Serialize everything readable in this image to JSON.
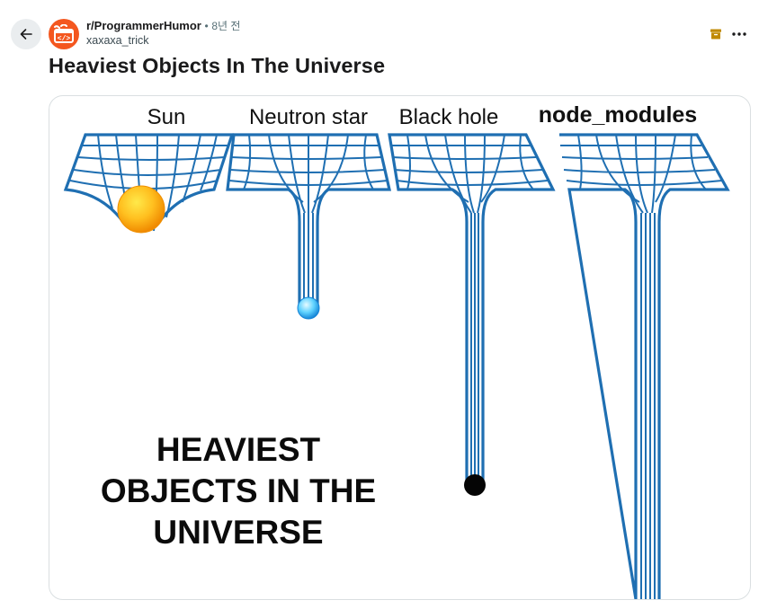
{
  "post": {
    "subreddit": "r/ProgrammerHumor",
    "separator": "•",
    "age": "8년 전",
    "author": "xaxaxa_trick",
    "title": "Heaviest Objects In The Universe"
  },
  "meme": {
    "labels": {
      "sun": "Sun",
      "neutron_star": "Neutron star",
      "black_hole": "Black hole",
      "node_modules": "node_modules"
    },
    "caption": {
      "line1": "HEAVIEST",
      "line2": "OBJECTS IN THE",
      "line3": "UNIVERSE"
    }
  },
  "icons": {
    "back": "back-arrow-icon",
    "subreddit": "programmerhumor-logo-icon",
    "archive": "archive-icon",
    "more": "more-options-icon"
  },
  "colors": {
    "grid": "#1f6fb2",
    "avatar": "#f4571f",
    "archive": "#c08a00"
  }
}
